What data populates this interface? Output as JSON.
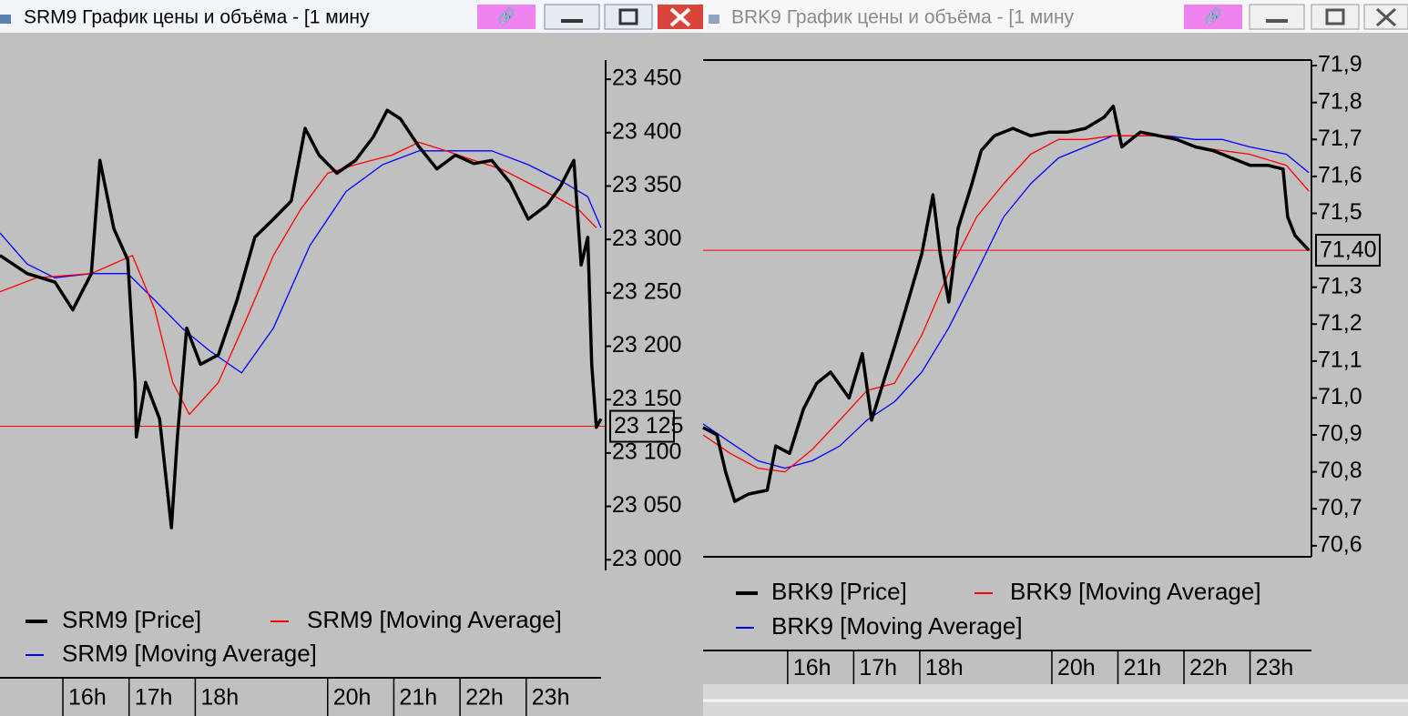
{
  "windows": [
    {
      "title": "SRM9 График цены и объёма - [1 мину"
    },
    {
      "title": "BRK9 График цены и объёма - [1 мину"
    }
  ],
  "chart_data": [
    {
      "type": "line",
      "xlim": [
        15.05,
        24.2
      ],
      "xticks": [
        {
          "value": 16,
          "label": "16h"
        },
        {
          "value": 17,
          "label": "17h"
        },
        {
          "value": 18,
          "label": "18h"
        },
        {
          "value": 20,
          "label": "20h"
        },
        {
          "value": 21,
          "label": "21h"
        },
        {
          "value": 22,
          "label": "22h"
        },
        {
          "value": 23,
          "label": "23h"
        }
      ],
      "ylim": [
        22990,
        23468
      ],
      "yticks": [
        {
          "value": 23000,
          "label": "23 000"
        },
        {
          "value": 23050,
          "label": "23 050"
        },
        {
          "value": 23100,
          "label": "23 100"
        },
        {
          "value": 23150,
          "label": "23 150"
        },
        {
          "value": 23200,
          "label": "23 200"
        },
        {
          "value": 23250,
          "label": "23 250"
        },
        {
          "value": 23300,
          "label": "23 300"
        },
        {
          "value": 23350,
          "label": "23 350"
        },
        {
          "value": 23400,
          "label": "23 400"
        },
        {
          "value": 23450,
          "label": "23 450"
        }
      ],
      "current_price": {
        "value": 23125,
        "label": "23 125"
      },
      "series": [
        {
          "name": "SRM9 [Price]",
          "color": "#000000",
          "x": [
            15.05,
            15.46,
            15.88,
            16.15,
            16.43,
            16.56,
            16.77,
            16.98,
            17.09,
            17.11,
            17.25,
            17.46,
            17.64,
            17.73,
            17.87,
            18.08,
            18.35,
            18.63,
            18.9,
            19.18,
            19.45,
            19.66,
            19.87,
            20.14,
            20.42,
            20.69,
            20.9,
            21.1,
            21.38,
            21.65,
            21.93,
            22.21,
            22.48,
            22.76,
            23.03,
            23.31,
            23.51,
            23.72,
            23.83,
            23.93,
            23.99,
            24.06,
            24.13
          ],
          "values": [
            23285,
            23268,
            23260,
            23234,
            23268,
            23374,
            23310,
            23281,
            23166,
            23115,
            23166,
            23132,
            23030,
            23115,
            23217,
            23183,
            23192,
            23243,
            23302,
            23319,
            23336,
            23404,
            23379,
            23362,
            23374,
            23396,
            23421,
            23413,
            23387,
            23366,
            23379,
            23371,
            23374,
            23353,
            23319,
            23332,
            23349,
            23374,
            23276,
            23302,
            23183,
            23124,
            23132
          ]
        },
        {
          "name": "SRM9 [Moving Average]",
          "color": "#ff0000",
          "x": [
            15.05,
            15.6,
            16.43,
            17.05,
            17.39,
            17.66,
            17.91,
            18.35,
            18.77,
            19.18,
            19.59,
            20.0,
            20.42,
            20.97,
            21.38,
            21.79,
            22.21,
            22.62,
            23.03,
            23.44,
            23.79,
            24.06
          ],
          "values": [
            23251,
            23264,
            23268,
            23285,
            23234,
            23166,
            23136,
            23166,
            23225,
            23285,
            23328,
            23362,
            23370,
            23379,
            23391,
            23383,
            23374,
            23366,
            23353,
            23340,
            23328,
            23311
          ]
        },
        {
          "name": "SRM9 [Moving Average]",
          "color": "#0000ff",
          "x": [
            15.05,
            15.46,
            15.88,
            16.43,
            16.98,
            17.39,
            17.8,
            18.21,
            18.7,
            19.18,
            19.73,
            20.28,
            20.83,
            21.38,
            21.93,
            22.48,
            23.03,
            23.58,
            23.93,
            24.13
          ],
          "values": [
            23306,
            23277,
            23264,
            23268,
            23268,
            23243,
            23217,
            23196,
            23175,
            23217,
            23294,
            23345,
            23370,
            23383,
            23383,
            23383,
            23370,
            23353,
            23340,
            23311
          ]
        }
      ]
    },
    {
      "type": "line",
      "xlim": [
        14.72,
        23.93
      ],
      "xticks": [
        {
          "value": 16,
          "label": "16h"
        },
        {
          "value": 17,
          "label": "17h"
        },
        {
          "value": 18,
          "label": "18h"
        },
        {
          "value": 20,
          "label": "20h"
        },
        {
          "value": 21,
          "label": "21h"
        },
        {
          "value": 22,
          "label": "22h"
        },
        {
          "value": 23,
          "label": "23h"
        }
      ],
      "ylim": [
        70.57,
        71.915
      ],
      "yticks": [
        {
          "value": 70.6,
          "label": "70,6"
        },
        {
          "value": 70.7,
          "label": "70,7"
        },
        {
          "value": 70.8,
          "label": "70,8"
        },
        {
          "value": 70.9,
          "label": "70,9"
        },
        {
          "value": 71.0,
          "label": "71,0"
        },
        {
          "value": 71.1,
          "label": "71,1"
        },
        {
          "value": 71.2,
          "label": "71,2"
        },
        {
          "value": 71.3,
          "label": "71,3"
        },
        {
          "value": 71.5,
          "label": "71,5"
        },
        {
          "value": 71.6,
          "label": "71,6"
        },
        {
          "value": 71.7,
          "label": "71,7"
        },
        {
          "value": 71.8,
          "label": "71,8"
        },
        {
          "value": 71.9,
          "label": "71,9"
        }
      ],
      "current_price": {
        "value": 71.4,
        "label": "71,40"
      },
      "series": [
        {
          "name": "BRK9 [Price]",
          "color": "#000000",
          "x": [
            14.72,
            14.93,
            15.06,
            15.2,
            15.41,
            15.69,
            15.82,
            16.03,
            16.24,
            16.44,
            16.65,
            16.93,
            17.13,
            17.27,
            17.41,
            17.62,
            17.82,
            18.03,
            18.2,
            18.31,
            18.44,
            18.58,
            18.79,
            18.93,
            19.13,
            19.41,
            19.68,
            19.96,
            20.24,
            20.51,
            20.79,
            20.93,
            21.06,
            21.34,
            21.62,
            21.89,
            22.17,
            22.44,
            22.72,
            23.0,
            23.27,
            23.5,
            23.57,
            23.68,
            23.89
          ],
          "values": [
            70.92,
            70.9,
            70.8,
            70.72,
            70.74,
            70.75,
            70.87,
            70.85,
            70.97,
            71.04,
            71.07,
            71.0,
            71.12,
            70.94,
            71.02,
            71.14,
            71.26,
            71.39,
            71.55,
            71.39,
            71.26,
            71.46,
            71.58,
            71.67,
            71.71,
            71.73,
            71.71,
            71.72,
            71.72,
            71.73,
            71.76,
            71.79,
            71.68,
            71.72,
            71.71,
            71.7,
            71.68,
            71.67,
            71.65,
            71.63,
            71.63,
            71.62,
            71.49,
            71.44,
            71.4
          ]
        },
        {
          "name": "BRK9 [Moving Average]",
          "color": "#ff0000",
          "x": [
            14.72,
            15.13,
            15.55,
            15.96,
            16.37,
            16.79,
            17.2,
            17.62,
            18.03,
            18.44,
            18.86,
            19.27,
            19.68,
            20.1,
            20.51,
            20.93,
            21.34,
            21.75,
            22.17,
            22.58,
            22.99,
            23.55,
            23.89
          ],
          "values": [
            70.9,
            70.85,
            70.81,
            70.8,
            70.86,
            70.94,
            71.02,
            71.04,
            71.17,
            71.34,
            71.49,
            71.58,
            71.66,
            71.7,
            71.7,
            71.71,
            71.71,
            71.71,
            71.68,
            71.67,
            71.66,
            71.63,
            71.56
          ]
        },
        {
          "name": "BRK9 [Moving Average]",
          "color": "#0000ff",
          "x": [
            14.72,
            15.13,
            15.55,
            15.96,
            16.37,
            16.79,
            17.2,
            17.62,
            18.03,
            18.44,
            18.86,
            19.27,
            19.68,
            20.1,
            20.51,
            20.93,
            21.34,
            21.75,
            22.17,
            22.58,
            22.99,
            23.55,
            23.89
          ],
          "values": [
            70.93,
            70.88,
            70.83,
            70.81,
            70.83,
            70.87,
            70.94,
            70.99,
            71.07,
            71.19,
            71.34,
            71.49,
            71.58,
            71.65,
            71.68,
            71.71,
            71.71,
            71.71,
            71.7,
            71.7,
            71.68,
            71.66,
            71.61
          ]
        }
      ]
    }
  ]
}
